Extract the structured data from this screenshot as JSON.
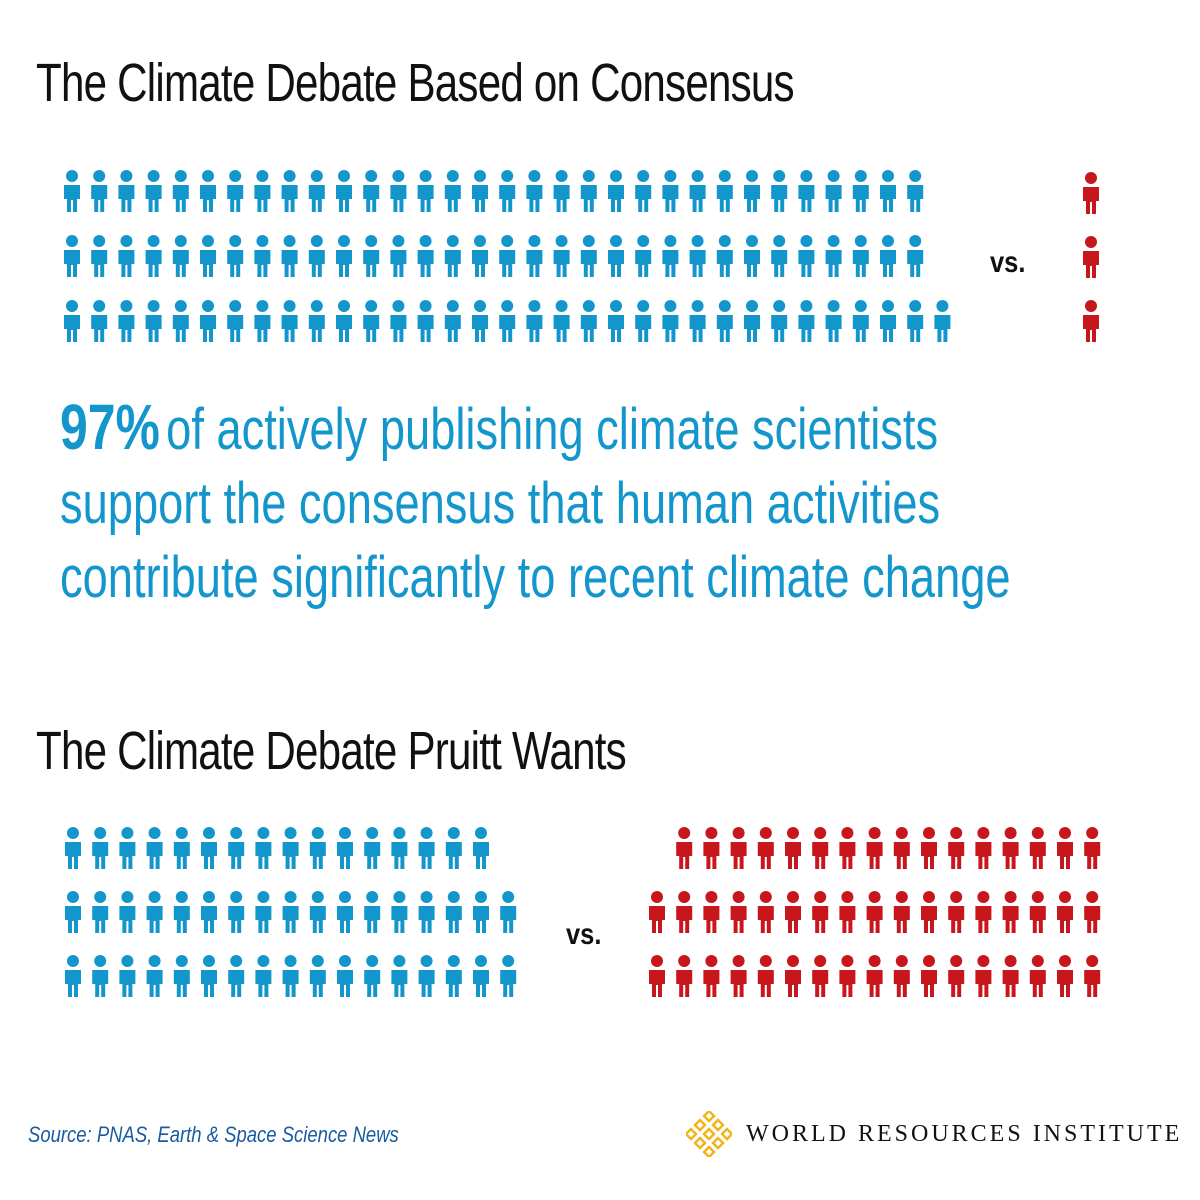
{
  "section1": {
    "title": "The Climate Debate Based on Consensus",
    "vs_label": "vs.",
    "agree_rows": [
      32,
      32,
      33
    ],
    "dissent_count": 3
  },
  "stat": {
    "percent": "97%",
    "text": "of actively publishing climate scientists support the consensus that human activities contribute significantly to recent climate change"
  },
  "section2": {
    "title": "The Climate Debate Pruitt Wants",
    "vs_label": "vs.",
    "agree_rows": [
      16,
      17,
      17
    ],
    "dissent_rows": [
      16,
      17,
      17
    ]
  },
  "footer": {
    "source": "Source: PNAS, Earth & Space Science News",
    "org": "WORLD RESOURCES INSTITUTE"
  },
  "colors": {
    "agree": "#1396cc",
    "dissent": "#c8161d",
    "logo": "#f2b316"
  },
  "icons": [
    "person-icon",
    "wri-logo-icon"
  ]
}
